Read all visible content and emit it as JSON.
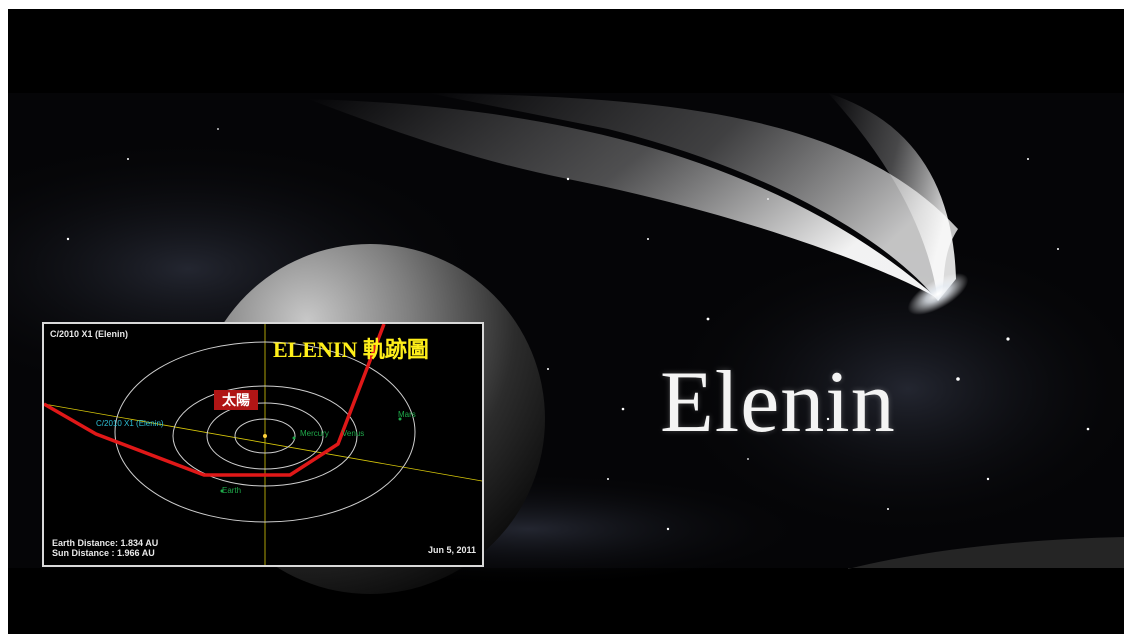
{
  "headline": "Elenin",
  "orbit_panel": {
    "designation": "C/2010 X1 (Elenin)",
    "title": "ELENIN 軌跡圖",
    "sun_label": "太陽",
    "comet_label": "C/2010 X1 (Elenin)",
    "planets": {
      "mercury": "Mercury",
      "venus": "Venus",
      "mars": "Mars",
      "earth": "Earth"
    },
    "earth_distance": "Earth Distance: 1.834 AU",
    "sun_distance": "Sun Distance  : 1.966 AU",
    "date": "Jun 5, 2011"
  },
  "colors": {
    "background": "#000000",
    "comet_path": "#e01818",
    "ecliptic_line": "#d8c80a",
    "orbit_rings": "#cfcfcf",
    "title_yellow": "#ffef1a",
    "badge_red": "#b01515"
  }
}
